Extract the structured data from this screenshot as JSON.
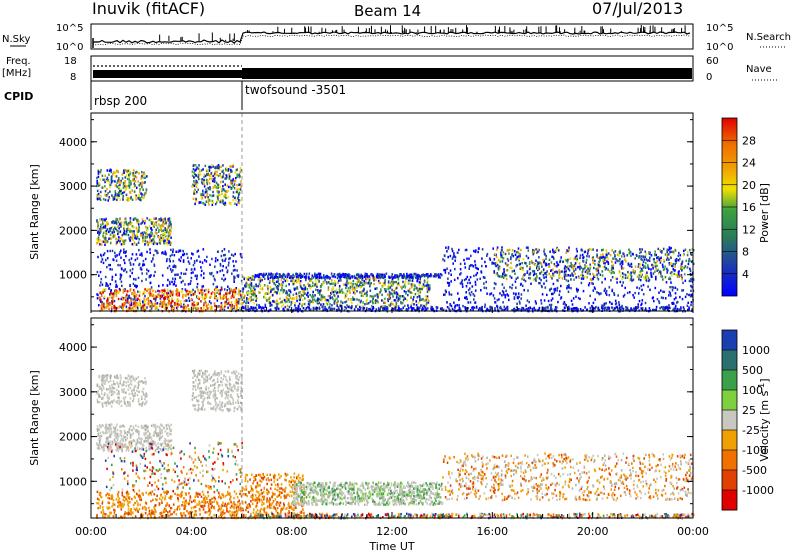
{
  "header": {
    "station": "Inuvik (fitACF)",
    "beam": "Beam 14",
    "date": "07/Jul/2013"
  },
  "panels": {
    "nsky_label": "N.Sky",
    "nsearch_label": "N.Search",
    "freq_label_top": "Freq.",
    "freq_label_bottom": "[MHz]",
    "nave_label": "Nave",
    "cpid_label": "CPID",
    "nsky_ticks": [
      "10^5",
      "10^0"
    ],
    "nsearch_ticks": [
      "10^5",
      "10^0"
    ],
    "freq_ticks": [
      "18",
      "8"
    ],
    "nave_ticks": [
      "60",
      "0"
    ],
    "cpid_segments": [
      "rbsp 200",
      "twofsound -3501"
    ]
  },
  "chart_data": [
    {
      "type": "heatmap",
      "name": "power",
      "ylabel": "Slant Range [km]",
      "xlabel": "",
      "y_ticks": [
        1000,
        2000,
        3000,
        4000
      ],
      "ylim": [
        180,
        4650
      ],
      "xlim": [
        0,
        24
      ],
      "colorbar_label": "Power [dB]",
      "colorbar_ticks": [
        "4",
        "8",
        "12",
        "16",
        "20",
        "24",
        "28"
      ],
      "colors": [
        "#0000ff",
        "#1f3fa8",
        "#2a7a5a",
        "#3aa040",
        "#f0e000",
        "#f0a000",
        "#f07000",
        "#e00000"
      ]
    },
    {
      "type": "heatmap",
      "name": "velocity",
      "ylabel": "Slant Range [km]",
      "xlabel": "Time UT",
      "x_ticks": [
        "00:00",
        "04:00",
        "08:00",
        "12:00",
        "16:00",
        "20:00",
        "00:00"
      ],
      "y_ticks": [
        1000,
        2000,
        3000,
        4000
      ],
      "ylim": [
        180,
        4650
      ],
      "xlim": [
        0,
        24
      ],
      "colorbar_label": "Velocity [m s^-1]",
      "colorbar_ticks": [
        "1000",
        "500",
        "100",
        "25",
        "-25",
        "-100",
        "-500",
        "-1000"
      ],
      "colors": [
        "#1a3fb0",
        "#2a7070",
        "#3aa04a",
        "#7fd040",
        "#c8c8c0",
        "#f0a000",
        "#f07000",
        "#e04000",
        "#e00000"
      ]
    }
  ]
}
